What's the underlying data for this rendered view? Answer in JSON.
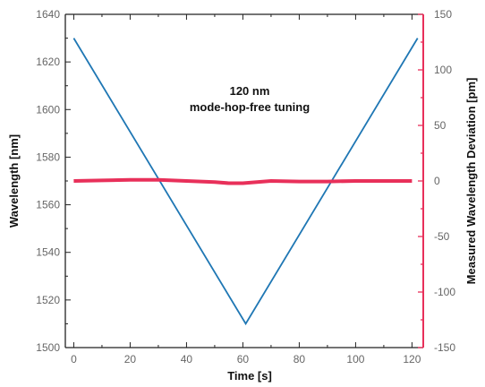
{
  "chart_data": {
    "type": "line",
    "title": "",
    "xlabel": "Time [s]",
    "ylabel_left": "Wavelength [nm]",
    "ylabel_right": "Measured Wavelength Deviation  [pm]",
    "xlim": [
      -3,
      124
    ],
    "ylim_left": [
      1500,
      1640
    ],
    "ylim_right": [
      -150,
      150
    ],
    "x_ticks": [
      0,
      20,
      40,
      60,
      80,
      100,
      120
    ],
    "y_left_ticks": [
      1500,
      1520,
      1540,
      1560,
      1580,
      1600,
      1620,
      1640
    ],
    "y_right_ticks": [
      -150,
      -100,
      -50,
      0,
      50,
      100,
      150
    ],
    "annotation": [
      "120 nm",
      "mode-hop-free tuning"
    ],
    "grid": false,
    "colors": {
      "wavelength": "#1f77b4",
      "deviation": "#e8305a",
      "right_axis": "#e8305a"
    },
    "series": [
      {
        "axis": "left",
        "x": [
          0,
          61,
          122
        ],
        "values": [
          1630,
          1510,
          1630
        ]
      },
      {
        "axis": "right",
        "x": [
          0,
          10,
          20,
          30,
          40,
          50,
          55,
          60,
          65,
          70,
          80,
          90,
          100,
          110,
          120
        ],
        "values": [
          0,
          0.5,
          1,
          1,
          0,
          -1,
          -2,
          -2,
          -1,
          0,
          -0.5,
          -0.5,
          0,
          0,
          0
        ]
      }
    ]
  }
}
